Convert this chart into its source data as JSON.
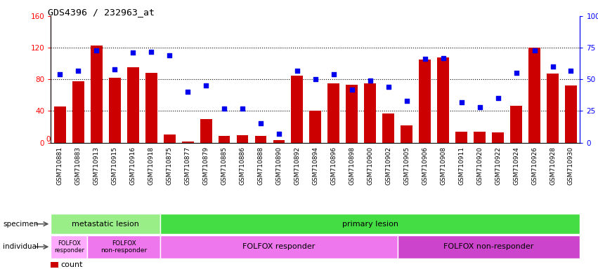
{
  "title": "GDS4396 / 232963_at",
  "samples": [
    "GSM710881",
    "GSM710883",
    "GSM710913",
    "GSM710915",
    "GSM710916",
    "GSM710918",
    "GSM710875",
    "GSM710877",
    "GSM710879",
    "GSM710885",
    "GSM710886",
    "GSM710888",
    "GSM710890",
    "GSM710892",
    "GSM710894",
    "GSM710896",
    "GSM710898",
    "GSM710900",
    "GSM710902",
    "GSM710905",
    "GSM710906",
    "GSM710908",
    "GSM710911",
    "GSM710920",
    "GSM710922",
    "GSM710924",
    "GSM710926",
    "GSM710928",
    "GSM710930"
  ],
  "counts": [
    46,
    78,
    123,
    82,
    95,
    88,
    10,
    1,
    30,
    8,
    9,
    8,
    3,
    85,
    40,
    75,
    73,
    75,
    37,
    22,
    105,
    108,
    14,
    14,
    13,
    47,
    120,
    87,
    72
  ],
  "percentiles": [
    54,
    57,
    73,
    58,
    71,
    72,
    69,
    40,
    45,
    27,
    27,
    15,
    7,
    57,
    50,
    54,
    42,
    49,
    44,
    33,
    66,
    67,
    32,
    28,
    35,
    55,
    73,
    60,
    57
  ],
  "bar_color": "#CC0000",
  "dot_color": "#0000EE",
  "ylim_left": [
    0,
    160
  ],
  "ylim_right": [
    0,
    100
  ],
  "yticks_left": [
    0,
    40,
    80,
    120,
    160
  ],
  "yticks_right": [
    0,
    25,
    50,
    75,
    100
  ],
  "ytick_labels_right": [
    "0",
    "25",
    "50",
    "75",
    "100%"
  ],
  "grid_values": [
    40,
    80,
    120
  ],
  "specimen_groups": [
    {
      "label": "metastatic lesion",
      "start": 0,
      "end": 6,
      "color": "#99EE88"
    },
    {
      "label": "primary lesion",
      "start": 6,
      "end": 29,
      "color": "#44DD44"
    }
  ],
  "individual_groups": [
    {
      "label": "FOLFOX\nresponder",
      "start": 0,
      "end": 2,
      "color": "#FFAAFF",
      "fontsize": 6
    },
    {
      "label": "FOLFOX\nnon-responder",
      "start": 2,
      "end": 6,
      "color": "#EE77EE",
      "fontsize": 6.5
    },
    {
      "label": "FOLFOX responder",
      "start": 6,
      "end": 19,
      "color": "#EE77EE",
      "fontsize": 8
    },
    {
      "label": "FOLFOX non-responder",
      "start": 19,
      "end": 29,
      "color": "#CC44CC",
      "fontsize": 8
    }
  ],
  "legend_count_color": "#CC0000",
  "legend_dot_color": "#0000EE",
  "bg_color": "#FFFFFF",
  "xtick_bg": "#CCCCCC"
}
